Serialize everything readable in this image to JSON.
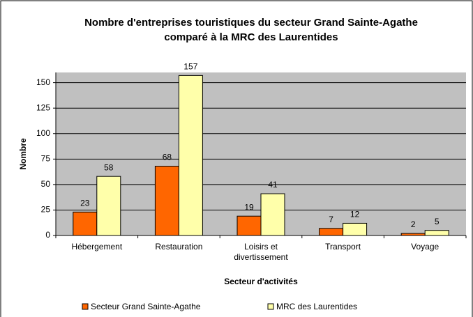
{
  "chart_data": {
    "type": "bar",
    "title": "Nombre d'entreprises touristiques du secteur Grand Sainte-Agathe comparé à la MRC des Laurentides",
    "x_label": "Secteur d'activités",
    "y_label": "Nombre",
    "categories": [
      "Hébergement",
      "Restauration",
      "Loisirs et divertissement",
      "Transport",
      "Voyage"
    ],
    "series": [
      {
        "name": "Secteur Grand Sainte-Agathe",
        "color": "#ff6600",
        "values": [
          23,
          68,
          19,
          7,
          2
        ]
      },
      {
        "name": "MRC des Laurentides",
        "color": "#ffffaa",
        "values": [
          58,
          157,
          41,
          12,
          5
        ]
      }
    ],
    "ylim": [
      0,
      160
    ],
    "yticks": [
      0,
      25,
      50,
      75,
      100,
      125,
      150
    ],
    "grid": true,
    "legend": "bottom"
  }
}
